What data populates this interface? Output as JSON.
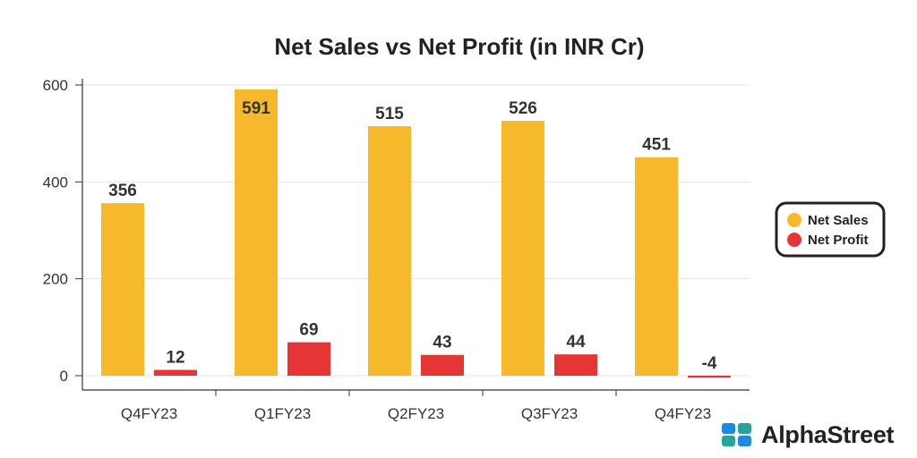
{
  "chart_data": {
    "type": "bar",
    "title": "Net Sales vs Net Profit (in INR Cr)",
    "categories": [
      "Q4FY23",
      "Q1FY23",
      "Q2FY23",
      "Q3FY23",
      "Q4FY23"
    ],
    "series": [
      {
        "name": "Net Sales",
        "color": "#F6B92B",
        "values": [
          356,
          591,
          515,
          526,
          451
        ]
      },
      {
        "name": "Net Profit",
        "color": "#E53535",
        "values": [
          12,
          69,
          43,
          44,
          -4
        ]
      }
    ],
    "yticks": [
      0,
      200,
      400,
      600
    ],
    "ylim": [
      -30,
      600
    ],
    "grid": true,
    "legend": "right"
  },
  "brand": {
    "name": "AlphaStreet",
    "icon": "alphastreet-logo-icon",
    "colors": [
      "#1E88E5",
      "#26A69A"
    ]
  }
}
